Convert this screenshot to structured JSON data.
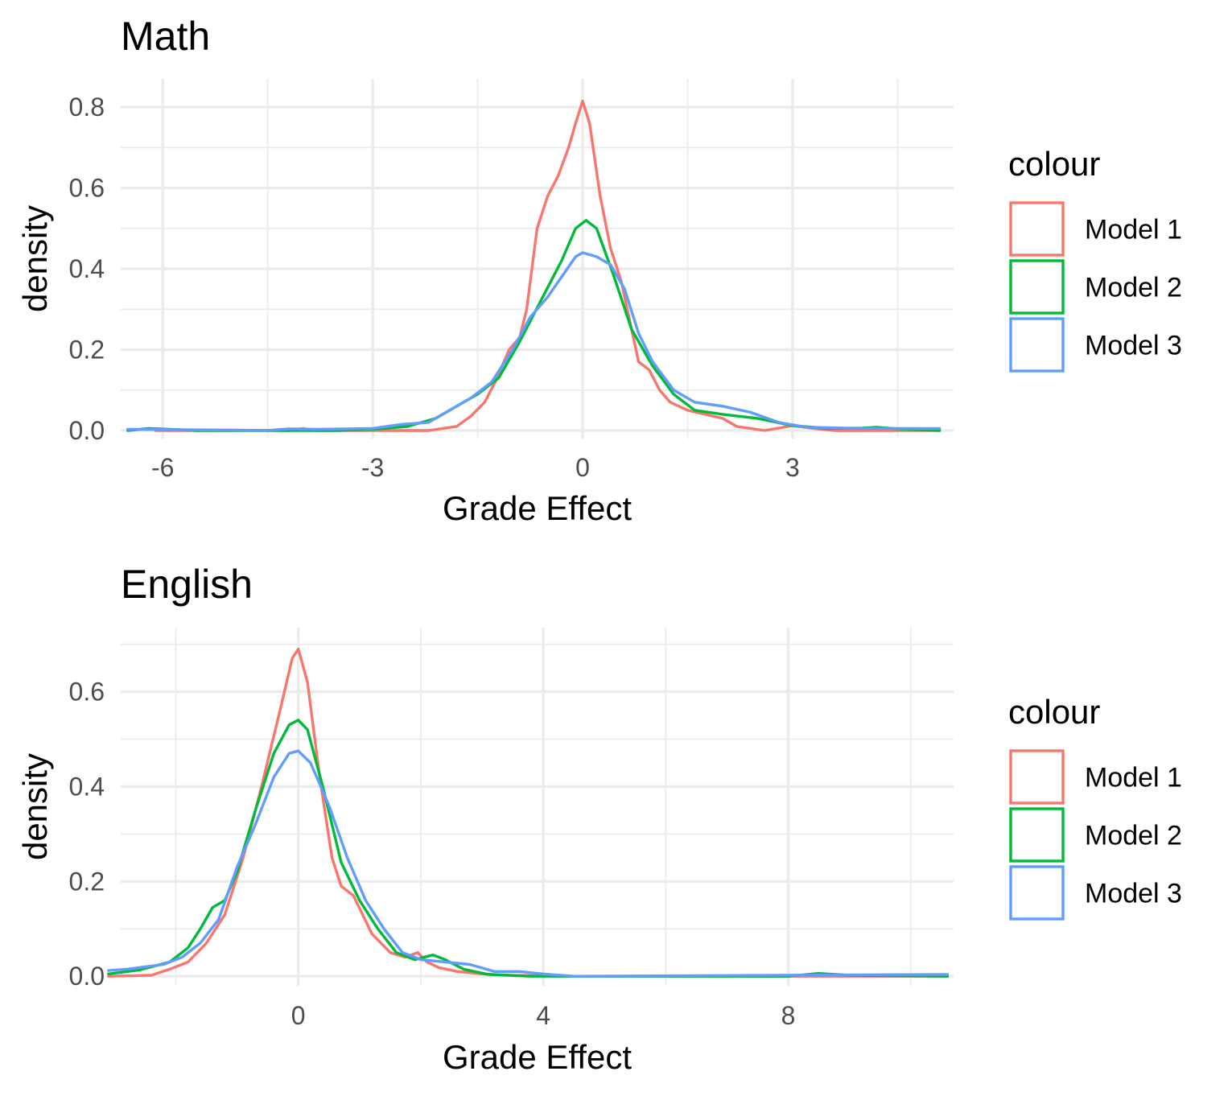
{
  "chart_data": [
    {
      "type": "line",
      "title": "Math",
      "xlabel": "Grade Effect",
      "ylabel": "density",
      "xlim": [
        -6.6,
        5.3
      ],
      "ylim": [
        -0.02,
        0.87
      ],
      "x_ticks": [
        -6,
        -3,
        0,
        3
      ],
      "x_tick_labels": [
        "-6",
        "-3",
        "0",
        "3"
      ],
      "x_minor_ticks": [
        -4.5,
        -1.5,
        1.5,
        4.5
      ],
      "y_ticks": [
        0.0,
        0.2,
        0.4,
        0.6,
        0.8
      ],
      "y_tick_labels": [
        "0.0",
        "0.2",
        "0.4",
        "0.6",
        "0.8"
      ],
      "y_minor_ticks": [
        0.1,
        0.3,
        0.5,
        0.7
      ],
      "grid": true,
      "legend": {
        "title": "colour",
        "position": "right"
      },
      "series": [
        {
          "name": "Model 1",
          "color": "#F8766D",
          "points": [
            [
              -6.1,
              0.0
            ],
            [
              -4.2,
              0.0
            ],
            [
              -4.0,
              0.005
            ],
            [
              -3.8,
              0.0
            ],
            [
              -2.2,
              0.0
            ],
            [
              -1.8,
              0.01
            ],
            [
              -1.6,
              0.035
            ],
            [
              -1.4,
              0.07
            ],
            [
              -1.25,
              0.12
            ],
            [
              -1.05,
              0.2
            ],
            [
              -0.9,
              0.23
            ],
            [
              -0.8,
              0.3
            ],
            [
              -0.65,
              0.5
            ],
            [
              -0.5,
              0.58
            ],
            [
              -0.35,
              0.63
            ],
            [
              -0.2,
              0.7
            ],
            [
              -0.1,
              0.76
            ],
            [
              0.0,
              0.815
            ],
            [
              0.1,
              0.76
            ],
            [
              0.25,
              0.58
            ],
            [
              0.4,
              0.45
            ],
            [
              0.55,
              0.37
            ],
            [
              0.7,
              0.25
            ],
            [
              0.8,
              0.17
            ],
            [
              0.95,
              0.15
            ],
            [
              1.1,
              0.1
            ],
            [
              1.25,
              0.07
            ],
            [
              1.5,
              0.05
            ],
            [
              1.75,
              0.04
            ],
            [
              2.0,
              0.03
            ],
            [
              2.2,
              0.01
            ],
            [
              2.6,
              0.0
            ],
            [
              3.0,
              0.012
            ],
            [
              3.3,
              0.005
            ],
            [
              3.6,
              0.0
            ],
            [
              5.1,
              0.0
            ]
          ]
        },
        {
          "name": "Model 2",
          "color": "#00BA38",
          "points": [
            [
              -6.5,
              0.0
            ],
            [
              -6.2,
              0.005
            ],
            [
              -5.9,
              0.003
            ],
            [
              -5.5,
              0.0
            ],
            [
              -3.5,
              0.0
            ],
            [
              -2.9,
              0.004
            ],
            [
              -2.5,
              0.01
            ],
            [
              -2.1,
              0.03
            ],
            [
              -1.8,
              0.06
            ],
            [
              -1.5,
              0.09
            ],
            [
              -1.2,
              0.13
            ],
            [
              -0.9,
              0.22
            ],
            [
              -0.6,
              0.32
            ],
            [
              -0.3,
              0.42
            ],
            [
              -0.1,
              0.5
            ],
            [
              0.05,
              0.52
            ],
            [
              0.2,
              0.5
            ],
            [
              0.45,
              0.38
            ],
            [
              0.7,
              0.25
            ],
            [
              1.0,
              0.16
            ],
            [
              1.3,
              0.09
            ],
            [
              1.6,
              0.05
            ],
            [
              2.0,
              0.04
            ],
            [
              2.5,
              0.03
            ],
            [
              3.0,
              0.012
            ],
            [
              3.5,
              0.005
            ],
            [
              4.0,
              0.006
            ],
            [
              4.2,
              0.008
            ],
            [
              4.5,
              0.004
            ],
            [
              5.1,
              0.0
            ]
          ]
        },
        {
          "name": "Model 3",
          "color": "#619CFF",
          "points": [
            [
              -6.5,
              0.003
            ],
            [
              -5.8,
              0.002
            ],
            [
              -5.0,
              0.001
            ],
            [
              -4.5,
              0.0
            ],
            [
              -4.2,
              0.004
            ],
            [
              -3.8,
              0.003
            ],
            [
              -3.0,
              0.005
            ],
            [
              -2.6,
              0.015
            ],
            [
              -2.2,
              0.02
            ],
            [
              -1.9,
              0.05
            ],
            [
              -1.6,
              0.08
            ],
            [
              -1.3,
              0.12
            ],
            [
              -1.0,
              0.2
            ],
            [
              -0.75,
              0.28
            ],
            [
              -0.5,
              0.33
            ],
            [
              -0.3,
              0.38
            ],
            [
              -0.1,
              0.43
            ],
            [
              0.0,
              0.44
            ],
            [
              0.2,
              0.43
            ],
            [
              0.4,
              0.41
            ],
            [
              0.6,
              0.35
            ],
            [
              0.8,
              0.24
            ],
            [
              1.0,
              0.17
            ],
            [
              1.3,
              0.1
            ],
            [
              1.6,
              0.07
            ],
            [
              2.0,
              0.06
            ],
            [
              2.4,
              0.045
            ],
            [
              2.8,
              0.02
            ],
            [
              3.2,
              0.008
            ],
            [
              4.0,
              0.005
            ],
            [
              5.1,
              0.005
            ]
          ]
        }
      ]
    },
    {
      "type": "line",
      "title": "English",
      "xlabel": "Grade Effect",
      "ylabel": "density",
      "xlim": [
        -2.9,
        10.7
      ],
      "ylim": [
        -0.02,
        0.735
      ],
      "x_ticks": [
        0,
        4,
        8
      ],
      "x_tick_labels": [
        "0",
        "4",
        "8"
      ],
      "x_minor_ticks": [
        -2,
        2,
        6,
        10
      ],
      "y_ticks": [
        0.0,
        0.2,
        0.4,
        0.6
      ],
      "y_tick_labels": [
        "0.0",
        "0.2",
        "0.4",
        "0.6"
      ],
      "y_minor_ticks": [
        0.1,
        0.3,
        0.5,
        0.7
      ],
      "grid": true,
      "legend": {
        "title": "colour",
        "position": "right"
      },
      "series": [
        {
          "name": "Model 1",
          "color": "#F8766D",
          "points": [
            [
              -3.1,
              0.0
            ],
            [
              -2.4,
              0.002
            ],
            [
              -2.1,
              0.015
            ],
            [
              -1.8,
              0.03
            ],
            [
              -1.5,
              0.07
            ],
            [
              -1.2,
              0.13
            ],
            [
              -0.9,
              0.25
            ],
            [
              -0.6,
              0.4
            ],
            [
              -0.3,
              0.56
            ],
            [
              -0.1,
              0.67
            ],
            [
              0.0,
              0.69
            ],
            [
              0.15,
              0.62
            ],
            [
              0.35,
              0.42
            ],
            [
              0.55,
              0.25
            ],
            [
              0.7,
              0.19
            ],
            [
              0.9,
              0.17
            ],
            [
              1.2,
              0.09
            ],
            [
              1.5,
              0.05
            ],
            [
              1.75,
              0.04
            ],
            [
              1.95,
              0.05
            ],
            [
              2.1,
              0.03
            ],
            [
              2.3,
              0.018
            ],
            [
              2.6,
              0.01
            ],
            [
              3.0,
              0.005
            ],
            [
              3.5,
              0.002
            ],
            [
              4.5,
              0.0
            ],
            [
              10.6,
              0.0
            ]
          ]
        },
        {
          "name": "Model 2",
          "color": "#00BA38",
          "points": [
            [
              -3.1,
              0.005
            ],
            [
              -2.6,
              0.013
            ],
            [
              -2.1,
              0.03
            ],
            [
              -1.8,
              0.06
            ],
            [
              -1.6,
              0.1
            ],
            [
              -1.4,
              0.145
            ],
            [
              -1.2,
              0.16
            ],
            [
              -1.0,
              0.22
            ],
            [
              -0.7,
              0.35
            ],
            [
              -0.4,
              0.47
            ],
            [
              -0.15,
              0.53
            ],
            [
              0.0,
              0.54
            ],
            [
              0.15,
              0.52
            ],
            [
              0.4,
              0.4
            ],
            [
              0.7,
              0.24
            ],
            [
              1.0,
              0.16
            ],
            [
              1.3,
              0.1
            ],
            [
              1.6,
              0.05
            ],
            [
              1.9,
              0.035
            ],
            [
              2.2,
              0.045
            ],
            [
              2.4,
              0.035
            ],
            [
              2.7,
              0.015
            ],
            [
              3.1,
              0.004
            ],
            [
              3.8,
              0.0
            ],
            [
              8.0,
              0.0
            ],
            [
              8.5,
              0.006
            ],
            [
              9.0,
              0.002
            ],
            [
              10.6,
              0.0
            ]
          ]
        },
        {
          "name": "Model 3",
          "color": "#619CFF",
          "points": [
            [
              -3.1,
              0.012
            ],
            [
              -2.8,
              0.015
            ],
            [
              -2.5,
              0.02
            ],
            [
              -2.2,
              0.025
            ],
            [
              -1.9,
              0.04
            ],
            [
              -1.6,
              0.07
            ],
            [
              -1.3,
              0.12
            ],
            [
              -1.0,
              0.23
            ],
            [
              -0.7,
              0.32
            ],
            [
              -0.4,
              0.42
            ],
            [
              -0.15,
              0.47
            ],
            [
              0.0,
              0.475
            ],
            [
              0.2,
              0.45
            ],
            [
              0.5,
              0.36
            ],
            [
              0.8,
              0.25
            ],
            [
              1.1,
              0.16
            ],
            [
              1.4,
              0.1
            ],
            [
              1.7,
              0.05
            ],
            [
              2.0,
              0.035
            ],
            [
              2.4,
              0.03
            ],
            [
              2.8,
              0.025
            ],
            [
              3.2,
              0.01
            ],
            [
              3.6,
              0.01
            ],
            [
              4.0,
              0.005
            ],
            [
              4.5,
              0.0
            ],
            [
              10.6,
              0.004
            ]
          ]
        }
      ]
    }
  ]
}
